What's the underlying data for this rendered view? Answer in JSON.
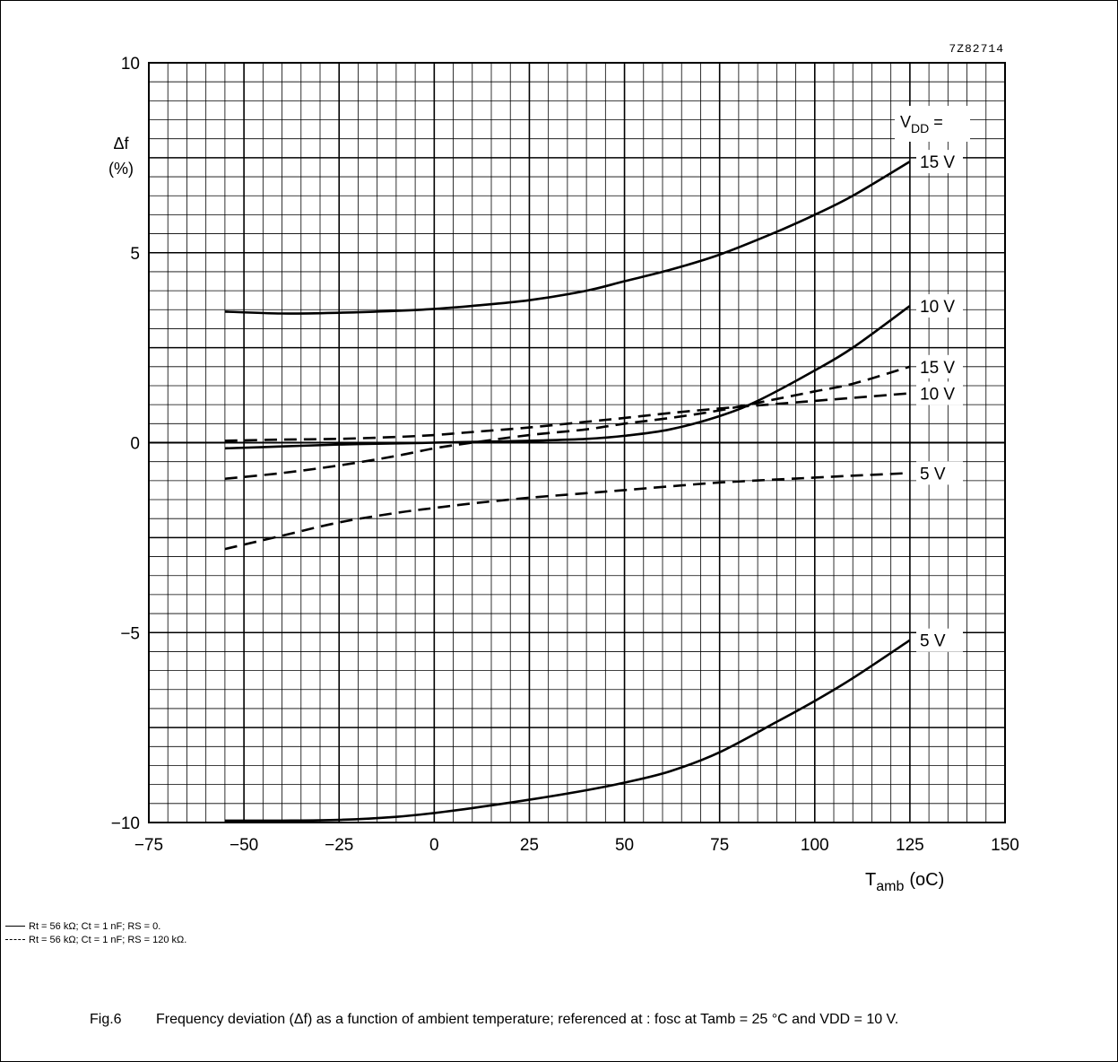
{
  "chart_data": {
    "type": "line",
    "figure_code": "7Z82714",
    "xlabel": "T",
    "xlabel_sub": "amb",
    "xlabel_unit": "(oC)",
    "ylabel_line1": "Δf",
    "ylabel_line2": "(%)",
    "xlim": [
      -75,
      150
    ],
    "ylim": [
      -10,
      10
    ],
    "x_ticks": [
      -75,
      -50,
      -25,
      0,
      25,
      50,
      75,
      100,
      125,
      150
    ],
    "x_tick_labels": [
      "−75",
      "−50",
      "−25",
      "0",
      "25",
      "50",
      "75",
      "100",
      "125",
      "150"
    ],
    "y_ticks": [
      -10,
      -5,
      0,
      5,
      10
    ],
    "y_tick_labels": [
      "−10",
      "−5",
      "0",
      "5",
      "10"
    ],
    "grid": true,
    "vdd_legend_label": "VDD =",
    "series": [
      {
        "name": "15 V",
        "style": "solid",
        "label": "15 V",
        "x": [
          -55,
          -40,
          -25,
          -10,
          0,
          10,
          25,
          40,
          50,
          62,
          75,
          90,
          100,
          110,
          125
        ],
        "y": [
          3.45,
          3.4,
          3.42,
          3.47,
          3.52,
          3.6,
          3.75,
          4.0,
          4.25,
          4.55,
          4.95,
          5.55,
          6.0,
          6.5,
          7.4
        ]
      },
      {
        "name": "10 V",
        "style": "solid",
        "label": "10 V",
        "x": [
          -55,
          -40,
          -25,
          -10,
          0,
          10,
          25,
          40,
          50,
          62,
          75,
          85,
          100,
          110,
          125
        ],
        "y": [
          -0.15,
          -0.1,
          -0.05,
          -0.02,
          0.0,
          0.02,
          0.05,
          0.1,
          0.18,
          0.35,
          0.7,
          1.1,
          1.9,
          2.5,
          3.6
        ]
      },
      {
        "name": "5 V",
        "style": "solid",
        "label": "5 V",
        "x": [
          -55,
          -40,
          -25,
          -10,
          0,
          10,
          25,
          40,
          50,
          62,
          75,
          90,
          100,
          110,
          125
        ],
        "y": [
          -9.95,
          -9.95,
          -9.93,
          -9.85,
          -9.75,
          -9.62,
          -9.4,
          -9.15,
          -8.95,
          -8.65,
          -8.15,
          -7.35,
          -6.8,
          -6.2,
          -5.2
        ]
      },
      {
        "name": "15 V",
        "style": "dashed",
        "label": "15 V",
        "x": [
          -55,
          -40,
          -25,
          -10,
          0,
          10,
          25,
          40,
          50,
          62,
          75,
          90,
          100,
          110,
          125
        ],
        "y": [
          -0.95,
          -0.8,
          -0.6,
          -0.35,
          -0.15,
          0.0,
          0.2,
          0.35,
          0.5,
          0.65,
          0.85,
          1.15,
          1.35,
          1.55,
          2.0
        ]
      },
      {
        "name": "10 V",
        "style": "dashed",
        "label": "10 V",
        "x": [
          -55,
          -40,
          -25,
          -10,
          0,
          10,
          25,
          40,
          50,
          62,
          75,
          90,
          100,
          110,
          125
        ],
        "y": [
          0.05,
          0.08,
          0.1,
          0.15,
          0.2,
          0.28,
          0.4,
          0.55,
          0.65,
          0.78,
          0.9,
          1.02,
          1.1,
          1.18,
          1.3
        ]
      },
      {
        "name": "5 V",
        "style": "dashed",
        "label": "5 V",
        "x": [
          -55,
          -40,
          -25,
          -10,
          0,
          10,
          25,
          40,
          50,
          62,
          75,
          90,
          100,
          110,
          125
        ],
        "y": [
          -2.8,
          -2.45,
          -2.1,
          -1.85,
          -1.72,
          -1.6,
          -1.45,
          -1.33,
          -1.25,
          -1.15,
          -1.05,
          -0.97,
          -0.92,
          -0.87,
          -0.8
        ]
      }
    ]
  },
  "legend": {
    "solid_text": "Rt = 56 kΩ; Ct = 1 nF; RS = 0.",
    "dashed_text": "Rt = 56 kΩ; Ct = 1 nF; RS = 120 kΩ."
  },
  "caption": {
    "label": "Fig.6",
    "text": "Frequency deviation (Δf) as a function of ambient temperature; referenced at : fosc at Tamb = 25 °C and VDD = 10 V."
  }
}
